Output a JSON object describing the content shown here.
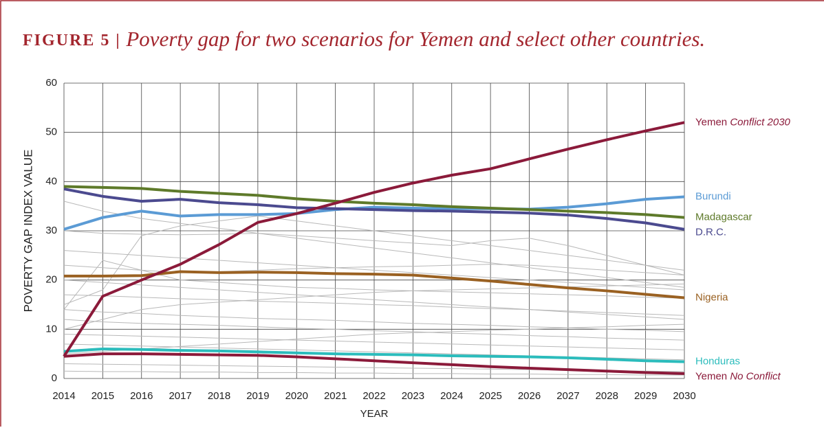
{
  "chart_data": {
    "type": "line",
    "title_prefix": "FIGURE 5 |",
    "title": "Poverty gap for two scenarios for Yemen and select other countries.",
    "x_label": "YEAR",
    "y_label": "POVERTY GAP INDEX VALUE",
    "x": [
      2014,
      2015,
      2016,
      2017,
      2018,
      2019,
      2020,
      2021,
      2022,
      2023,
      2024,
      2025,
      2026,
      2027,
      2028,
      2029,
      2030
    ],
    "xlim": [
      2014,
      2030
    ],
    "xticks": [
      2014,
      2015,
      2016,
      2017,
      2018,
      2019,
      2020,
      2021,
      2022,
      2023,
      2024,
      2025,
      2026,
      2027,
      2028,
      2029,
      2030
    ],
    "ylim": [
      0,
      60
    ],
    "yticks": [
      0,
      10,
      20,
      30,
      40,
      50,
      60
    ],
    "grid": true,
    "series": [
      {
        "color": "#b8b8b8",
        "values": [
          36,
          34,
          32.5,
          31.5,
          30.5,
          29.5,
          28.5,
          27.5,
          26.5,
          25.5,
          24.5,
          23.5,
          22.5,
          21.5,
          20.5,
          19.5,
          18.5
        ]
      },
      {
        "color": "#b8b8b8",
        "values": [
          30,
          29.5,
          29.3,
          29.2,
          29.3,
          29.5,
          29,
          28.5,
          28,
          27.5,
          27,
          28,
          28.5,
          27,
          25,
          23,
          21
        ]
      },
      {
        "color": "#b8b8b8",
        "values": [
          23,
          22.5,
          22,
          21.5,
          21.7,
          22,
          22.3,
          22.5,
          22.7,
          22.8,
          23,
          23.2,
          23,
          22.5,
          22,
          21.5,
          21
        ]
      },
      {
        "color": "#b8b8b8",
        "values": [
          14,
          24,
          22,
          20,
          19.5,
          19,
          18.5,
          18.3,
          18,
          17.8,
          17.6,
          17.4,
          17.2,
          17,
          16.8,
          16.5,
          16.3
        ]
      },
      {
        "color": "#b8b8b8",
        "values": [
          17,
          16.8,
          16.5,
          16.2,
          16,
          15.7,
          15.5,
          15.3,
          15,
          14.8,
          14.5,
          14.2,
          14,
          13.7,
          13.4,
          13.1,
          12.8
        ]
      },
      {
        "color": "#b8b8b8",
        "values": [
          14,
          13.5,
          13.2,
          12.8,
          12.5,
          12.2,
          12,
          11.8,
          11.5,
          11.2,
          11,
          10.8,
          10.5,
          10.3,
          10,
          9.8,
          9.5
        ]
      },
      {
        "color": "#b8b8b8",
        "values": [
          12,
          11.5,
          11.2,
          11,
          10.8,
          10.5,
          10.2,
          10,
          9.7,
          9.5,
          9.2,
          9,
          8.7,
          8.5,
          8.2,
          8,
          7.8
        ]
      },
      {
        "color": "#b8b8b8",
        "values": [
          9,
          8.8,
          8.6,
          8.4,
          8.2,
          8,
          7.8,
          7.6,
          7.4,
          7.2,
          7,
          6.8,
          6.6,
          6.4,
          6.2,
          6,
          5.8
        ]
      },
      {
        "color": "#b8b8b8",
        "values": [
          7,
          6.8,
          6.6,
          6.4,
          6.2,
          6,
          5.8,
          5.6,
          5.4,
          5.2,
          5,
          4.8,
          4.6,
          4.4,
          4.2,
          4,
          3.8
        ]
      },
      {
        "color": "#b8b8b8",
        "values": [
          3,
          2.9,
          2.8,
          2.7,
          2.6,
          2.5,
          2.4,
          2.3,
          2.2,
          2.1,
          2,
          1.9,
          1.8,
          1.7,
          1.6,
          1.5,
          1.4
        ]
      },
      {
        "color": "#b8b8b8",
        "values": [
          1.5,
          1.4,
          1.4,
          1.3,
          1.3,
          1.2,
          1.2,
          1.1,
          1.1,
          1,
          1,
          0.9,
          0.9,
          0.8,
          0.8,
          0.7,
          0.7
        ]
      },
      {
        "color": "#b8b8b8",
        "values": [
          15,
          18,
          29,
          31,
          32,
          33,
          32,
          31,
          30,
          29,
          28,
          27,
          26,
          25,
          24,
          23,
          22
        ]
      },
      {
        "color": "#b8b8b8",
        "values": [
          10,
          12,
          14,
          15,
          15.5,
          16,
          16.5,
          17,
          17.5,
          17.8,
          18,
          18.2,
          18.4,
          18.6,
          18.8,
          19,
          19.2
        ]
      },
      {
        "color": "#b8b8b8",
        "values": [
          20,
          19.5,
          19,
          18.5,
          18,
          17.5,
          17,
          16.5,
          16,
          15.5,
          15,
          14.5,
          14,
          13.5,
          13,
          12.5,
          12
        ]
      },
      {
        "color": "#b8b8b8",
        "values": [
          5,
          5.5,
          6,
          6.5,
          7,
          7.5,
          8,
          8.5,
          9,
          9.3,
          9.5,
          9.8,
          10,
          10.3,
          10.5,
          10.8,
          11
        ]
      },
      {
        "color": "#b8b8b8",
        "values": [
          26,
          25.5,
          25,
          24.5,
          24,
          23.5,
          23,
          22.5,
          22,
          21.5,
          21,
          20.5,
          20,
          19.5,
          19,
          18.5,
          18
        ]
      },
      {
        "name": "Nigeria",
        "color": "#9a6122",
        "values": [
          20.8,
          20.8,
          20.9,
          21.7,
          21.5,
          21.6,
          21.5,
          21.3,
          21.2,
          21.0,
          20.4,
          19.8,
          19.1,
          18.4,
          17.8,
          17.1,
          16.4
        ]
      },
      {
        "name": "Honduras",
        "color": "#2bbcbc",
        "values": [
          5.5,
          6.0,
          5.9,
          5.7,
          5.6,
          5.4,
          5.2,
          5.0,
          4.9,
          4.8,
          4.6,
          4.5,
          4.4,
          4.2,
          3.9,
          3.6,
          3.4
        ]
      },
      {
        "name": "Burundi",
        "color": "#5b9bd5",
        "values": [
          30.3,
          32.7,
          34.0,
          33.0,
          33.3,
          33.3,
          33.5,
          34.3,
          34.8,
          34.6,
          34.5,
          34.5,
          34.4,
          34.8,
          35.5,
          36.4,
          36.9
        ]
      },
      {
        "name": "D.R.C.",
        "color": "#4b4a8f",
        "values": [
          38.5,
          37.0,
          36.0,
          36.4,
          35.7,
          35.3,
          34.7,
          34.5,
          34.3,
          34.1,
          34.0,
          33.8,
          33.6,
          33.2,
          32.5,
          31.6,
          30.3
        ]
      },
      {
        "name": "Madagascar",
        "color": "#5e7a2a",
        "values": [
          39.0,
          38.8,
          38.6,
          38.0,
          37.6,
          37.2,
          36.5,
          36.0,
          35.6,
          35.3,
          34.9,
          34.6,
          34.3,
          34.0,
          33.7,
          33.3,
          32.7
        ]
      },
      {
        "name": "Yemen",
        "scenario": "No Conflict",
        "color": "#8b1a3a",
        "values": [
          4.5,
          5.0,
          5.0,
          4.9,
          4.8,
          4.7,
          4.4,
          4.0,
          3.6,
          3.2,
          2.8,
          2.4,
          2.1,
          1.8,
          1.5,
          1.2,
          1.0
        ]
      },
      {
        "name": "Yemen",
        "scenario": "Conflict 2030",
        "color": "#8b1a3a",
        "values": [
          4.5,
          16.7,
          20,
          23.2,
          27.2,
          31.7,
          33.5,
          35.6,
          37.8,
          39.7,
          41.3,
          42.6,
          44.6,
          46.6,
          48.5,
          50.3,
          52
        ]
      }
    ]
  }
}
